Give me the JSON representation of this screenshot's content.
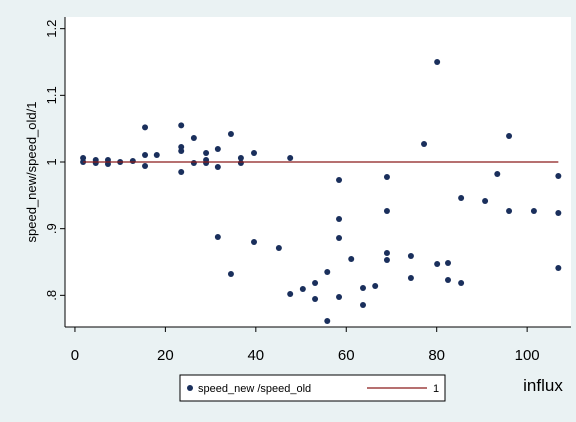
{
  "chart_data": {
    "type": "scatter",
    "x_label": "influx",
    "y_label": "speed_new/speed_old/1",
    "xlim": [
      -2.2,
      109.7
    ],
    "ylim": [
      0.7525,
      1.2175
    ],
    "xticks": [
      0,
      20,
      40,
      60,
      80,
      100
    ],
    "yticks": [
      {
        "value": 0.8,
        "label": ".8"
      },
      {
        "value": 0.9,
        "label": ".9"
      },
      1,
      1.1,
      1.2
    ],
    "series": [
      {
        "name": "speed_new /speed_old",
        "mode": "markers",
        "color": "#1a2f5c",
        "x": [
          1.8,
          1.8,
          4.6,
          4.6,
          7.3,
          7.3,
          10,
          12.8,
          15.5,
          15.5,
          15.5,
          18.1,
          23.5,
          23.5,
          23.5,
          23.5,
          26.3,
          26.3,
          29,
          29,
          29,
          31.6,
          31.6,
          34.5,
          36.7,
          36.7,
          39.6,
          47.6,
          31.6,
          34.5,
          39.6,
          45.1,
          47.6,
          50.4,
          53.1,
          53.1,
          55.8,
          55.8,
          58.4,
          58.4,
          58.4,
          58.4,
          61.1,
          63.7,
          63.7,
          66.4,
          69,
          69,
          69,
          69,
          74.3,
          74.3,
          77.2,
          80.1,
          80.1,
          82.5,
          82.5,
          85.4,
          85.4,
          90.7,
          93.4,
          96,
          96,
          101.5,
          106.9,
          106.9,
          106.9
        ],
        "values": [
          1,
          1.006,
          1.003,
          0.9985,
          1.003,
          0.997,
          1,
          1.0015,
          1.052,
          1.0105,
          0.994,
          1.0105,
          1.055,
          1.0225,
          1.0165,
          0.985,
          1.036,
          0.9985,
          1.0135,
          1.003,
          0.9985,
          1.0195,
          0.9925,
          1.042,
          1.006,
          0.9985,
          1.0135,
          1.006,
          0.8875,
          0.832,
          0.88,
          0.871,
          0.802,
          0.8095,
          0.8185,
          0.7945,
          0.835,
          0.7615,
          0.973,
          0.9145,
          0.886,
          0.7975,
          0.8545,
          0.811,
          0.7855,
          0.814,
          0.9775,
          0.9265,
          0.8635,
          0.853,
          0.859,
          0.826,
          1.027,
          1.15,
          0.847,
          0.8485,
          0.823,
          0.946,
          0.8185,
          0.9415,
          0.982,
          1.039,
          0.9265,
          0.9265,
          0.979,
          0.9235,
          0.841
        ]
      },
      {
        "name": "1",
        "mode": "line",
        "color": "#8b1a1a",
        "x": [
          1.8,
          106.9
        ],
        "values": [
          1,
          1
        ]
      }
    ]
  }
}
